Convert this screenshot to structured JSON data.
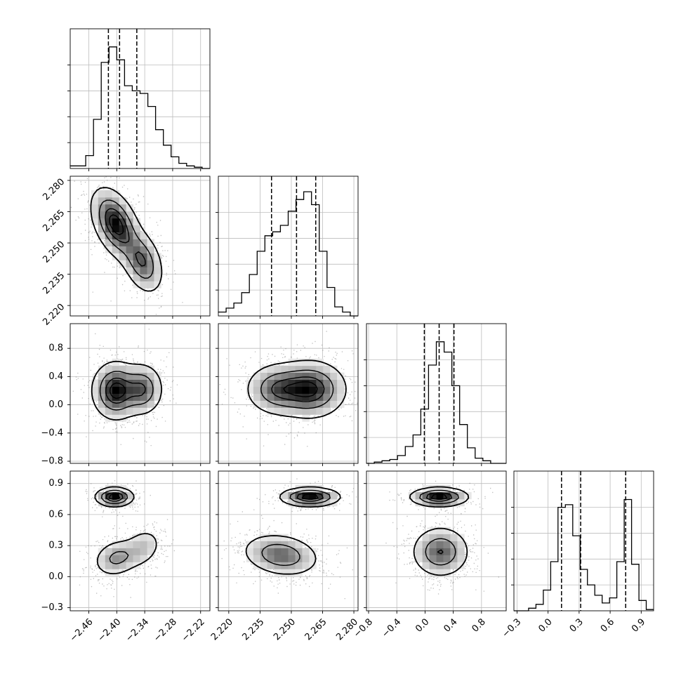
{
  "chart_data": {
    "type": "corner",
    "title": "",
    "parameters": [
      {
        "range": [
          -2.5,
          -2.2
        ],
        "ticks": [
          -2.46,
          -2.4,
          -2.34,
          -2.28,
          -2.22
        ],
        "tick_labels": [
          "−2.46",
          "−2.40",
          "−2.34",
          "−2.28",
          "−2.22"
        ],
        "quantiles": [
          -2.418,
          -2.394,
          -2.357
        ],
        "hist_counts": [
          0.02,
          0.02,
          0.1,
          0.38,
          0.82,
          0.94,
          0.84,
          0.64,
          0.6,
          0.58,
          0.48,
          0.3,
          0.18,
          0.09,
          0.04,
          0.02,
          0.01,
          0.0
        ]
      },
      {
        "range": [
          2.215,
          2.282
        ],
        "ticks": [
          2.22,
          2.235,
          2.25,
          2.265,
          2.28
        ],
        "tick_labels": [
          "2.220",
          "2.235",
          "2.250",
          "2.265",
          "2.280"
        ],
        "quantiles": [
          2.2405,
          2.2525,
          2.2617
        ],
        "hist_counts": [
          0.03,
          0.06,
          0.1,
          0.18,
          0.32,
          0.5,
          0.62,
          0.65,
          0.7,
          0.81,
          0.9,
          0.96,
          0.86,
          0.5,
          0.22,
          0.07,
          0.03,
          0.0
        ]
      },
      {
        "range": [
          -0.83,
          1.15
        ],
        "ticks": [
          -0.8,
          -0.4,
          0.0,
          0.4,
          0.8
        ],
        "tick_labels": [
          "−0.8",
          "−0.4",
          "0.0",
          "0.4",
          "0.8"
        ],
        "quantiles": [
          -0.01,
          0.2,
          0.41
        ],
        "hist_counts": [
          0.0,
          0.01,
          0.02,
          0.03,
          0.06,
          0.13,
          0.22,
          0.42,
          0.76,
          0.94,
          0.86,
          0.6,
          0.3,
          0.12,
          0.04,
          0.02,
          0.0,
          0.0
        ]
      },
      {
        "range": [
          -0.33,
          1.02
        ],
        "ticks": [
          -0.3,
          0.0,
          0.3,
          0.6,
          0.9
        ],
        "tick_labels": [
          "−0.3",
          "0.0",
          "0.3",
          "0.6",
          "0.9"
        ],
        "quantiles": [
          0.13,
          0.315,
          0.75
        ],
        "hist_counts": [
          0.0,
          0.0,
          0.02,
          0.05,
          0.16,
          0.38,
          0.8,
          0.82,
          0.58,
          0.32,
          0.2,
          0.12,
          0.06,
          0.1,
          0.38,
          0.86,
          0.36,
          0.08,
          0.01
        ]
      }
    ],
    "pairs": [
      {
        "x": 0,
        "y": 1,
        "modes": [
          {
            "cx": -2.402,
            "cy": 2.259,
            "sx": 0.026,
            "sy": 0.0085,
            "rho": -0.45,
            "w": 0.65
          },
          {
            "cx": -2.345,
            "cy": 2.241,
            "sx": 0.022,
            "sy": 0.0075,
            "rho": -0.35,
            "w": 0.35
          }
        ]
      },
      {
        "x": 0,
        "y": 2,
        "modes": [
          {
            "cx": -2.402,
            "cy": 0.2,
            "sx": 0.025,
            "sy": 0.2,
            "rho": 0.0,
            "w": 0.65
          },
          {
            "cx": -2.345,
            "cy": 0.22,
            "sx": 0.022,
            "sy": 0.18,
            "rho": 0.0,
            "w": 0.35
          }
        ]
      },
      {
        "x": 0,
        "y": 3,
        "modes": [
          {
            "cx": -2.405,
            "cy": 0.77,
            "sx": 0.02,
            "sy": 0.045,
            "rho": 0.0,
            "w": 0.36
          },
          {
            "cx": -2.4,
            "cy": 0.18,
            "sx": 0.025,
            "sy": 0.09,
            "rho": 0.2,
            "w": 0.4
          },
          {
            "cx": -2.345,
            "cy": 0.28,
            "sx": 0.022,
            "sy": 0.1,
            "rho": 0.25,
            "w": 0.24
          }
        ]
      },
      {
        "x": 1,
        "y": 2,
        "modes": [
          {
            "cx": 2.259,
            "cy": 0.22,
            "sx": 0.0085,
            "sy": 0.2,
            "rho": 0.0,
            "w": 0.65
          },
          {
            "cx": 2.243,
            "cy": 0.22,
            "sx": 0.0075,
            "sy": 0.18,
            "rho": 0.0,
            "w": 0.35
          }
        ]
      },
      {
        "x": 1,
        "y": 3,
        "modes": [
          {
            "cx": 2.259,
            "cy": 0.77,
            "sx": 0.007,
            "sy": 0.045,
            "rho": 0.0,
            "w": 0.36
          },
          {
            "cx": 2.245,
            "cy": 0.21,
            "sx": 0.009,
            "sy": 0.1,
            "rho": -0.2,
            "w": 0.64
          }
        ]
      },
      {
        "x": 2,
        "y": 3,
        "modes": [
          {
            "cx": 0.2,
            "cy": 0.77,
            "sx": 0.2,
            "sy": 0.045,
            "rho": 0.0,
            "w": 0.36
          },
          {
            "cx": 0.22,
            "cy": 0.24,
            "sx": 0.2,
            "sy": 0.12,
            "rho": 0.0,
            "w": 0.64
          }
        ]
      }
    ],
    "contour_levels": [
      0.118,
      0.393,
      0.675,
      0.864
    ],
    "grid": true,
    "legend": "none"
  }
}
